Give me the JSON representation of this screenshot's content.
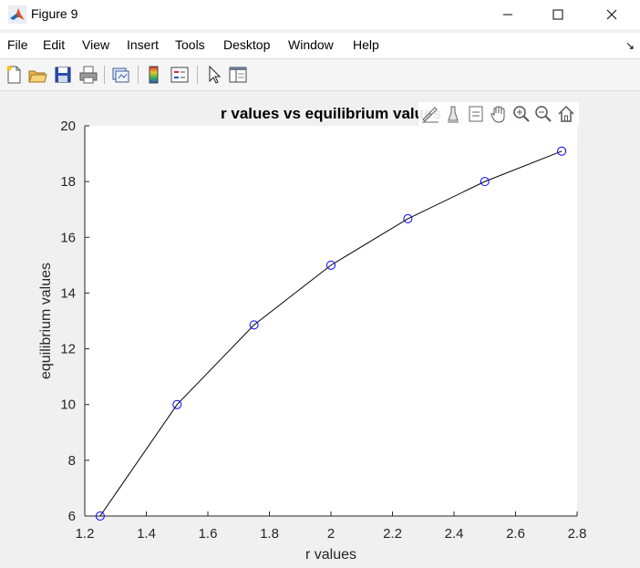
{
  "window": {
    "title": "Figure 9",
    "app_icon": "matlab-icon",
    "controls": [
      "minimize-icon",
      "maximize-icon",
      "close-icon"
    ]
  },
  "menubar": {
    "items": [
      {
        "id": "file",
        "label": "File"
      },
      {
        "id": "edit",
        "label": "Edit"
      },
      {
        "id": "view",
        "label": "View"
      },
      {
        "id": "insert",
        "label": "Insert"
      },
      {
        "id": "tools",
        "label": "Tools"
      },
      {
        "id": "desktop",
        "label": "Desktop"
      },
      {
        "id": "window",
        "label": "Window"
      },
      {
        "id": "help",
        "label": "Help"
      }
    ],
    "dock_icon": "dock-arrow-icon"
  },
  "toolbar": {
    "icons": [
      "new-figure-icon",
      "open-file-icon",
      "save-icon",
      "print-icon",
      "link-plot-icon",
      "insert-colorbar-icon",
      "insert-legend-icon",
      "edit-plot-icon",
      "property-inspector-icon"
    ]
  },
  "axes_toolbar": {
    "icons": [
      "brush-icon",
      "data-tips-icon",
      "data-cursor-icon",
      "pan-icon",
      "zoom-in-icon",
      "zoom-out-icon",
      "home-icon"
    ]
  },
  "chart_data": {
    "type": "line",
    "title": "r values vs equilibrium values",
    "xlabel": "r values",
    "ylabel": "equilibrium values",
    "xlim": [
      1.2,
      2.8
    ],
    "ylim": [
      6,
      20
    ],
    "xticks": [
      1.2,
      1.4,
      1.6,
      1.8,
      2.0,
      2.2,
      2.4,
      2.6,
      2.8
    ],
    "xtick_labels": [
      "1.2",
      "1.4",
      "1.6",
      "1.8",
      "2",
      "2.2",
      "2.4",
      "2.6",
      "2.8"
    ],
    "yticks": [
      6,
      8,
      10,
      12,
      14,
      16,
      18,
      20
    ],
    "ytick_labels": [
      "6",
      "8",
      "10",
      "12",
      "14",
      "16",
      "18",
      "20"
    ],
    "grid": false,
    "series": [
      {
        "x": [
          1.25,
          1.5,
          1.75,
          2.0,
          2.25,
          2.5,
          2.75
        ],
        "y": [
          6.0,
          10.0,
          12.857,
          15.0,
          16.667,
          18.0,
          19.091
        ],
        "line_color": "#000000",
        "marker": "circle",
        "marker_color": "#0000ff"
      }
    ]
  }
}
